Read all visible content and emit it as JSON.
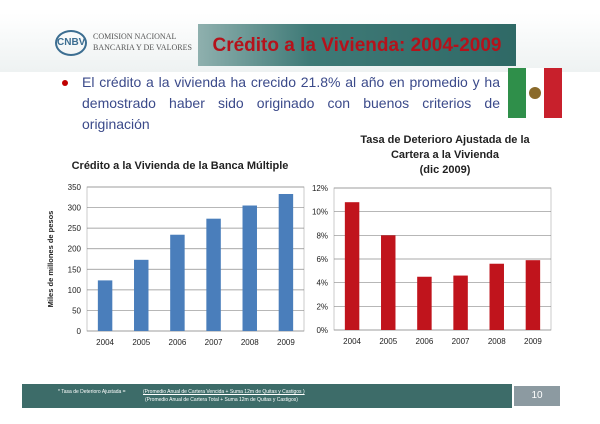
{
  "header": {
    "logo_mark": "CNBV",
    "logo_line1": "COMISION NACIONAL",
    "logo_line2": "BANCARIA Y DE VALORES",
    "title": "Crédito a la Vivienda: 2004-2009"
  },
  "bullet": "El crédito a la vivienda ha crecido 21.8% al año en promedio y ha demostrado haber sido originado con buenos criterios de originación",
  "chart_data": [
    {
      "type": "bar",
      "title": "Crédito a la Vivienda de la Banca Múltiple",
      "ylabel": "Miles de millones de pesos",
      "categories": [
        "2004",
        "2005",
        "2006",
        "2007",
        "2008",
        "2009"
      ],
      "values": [
        123,
        173,
        234,
        273,
        305,
        333
      ],
      "ylim": [
        0,
        350
      ],
      "yticks": [
        0,
        50,
        100,
        150,
        200,
        250,
        300,
        350
      ],
      "ytick_labels": [
        "0",
        "50",
        "100",
        "150",
        "200",
        "250",
        "300",
        "350"
      ],
      "color": "#4a7ebb",
      "grid": true
    },
    {
      "type": "bar",
      "title_lines": [
        "Tasa de Deterioro Ajustada de la",
        "Cartera a la Vivienda",
        "(dic 2009)"
      ],
      "categories": [
        "2004",
        "2005",
        "2006",
        "2007",
        "2008",
        "2009"
      ],
      "values": [
        10.8,
        8.0,
        4.5,
        4.6,
        5.6,
        5.9
      ],
      "ylim": [
        0,
        12
      ],
      "yticks": [
        0,
        2,
        4,
        6,
        8,
        10,
        12
      ],
      "ytick_labels": [
        "0%",
        "2%",
        "4%",
        "6%",
        "8%",
        "10%",
        "12%"
      ],
      "color": "#c0141c",
      "grid": true
    }
  ],
  "footnote": {
    "label": "* Tasa de Deterioro Ajustada =",
    "numerator": "(Promedio Anual de Cartera Vencida + Suma 12m de Quitas y Castigos )",
    "denominator": "(Promedio Anual de Cartera Total + Suma 12m de Quitas y Castigos)"
  },
  "page_number": "10"
}
